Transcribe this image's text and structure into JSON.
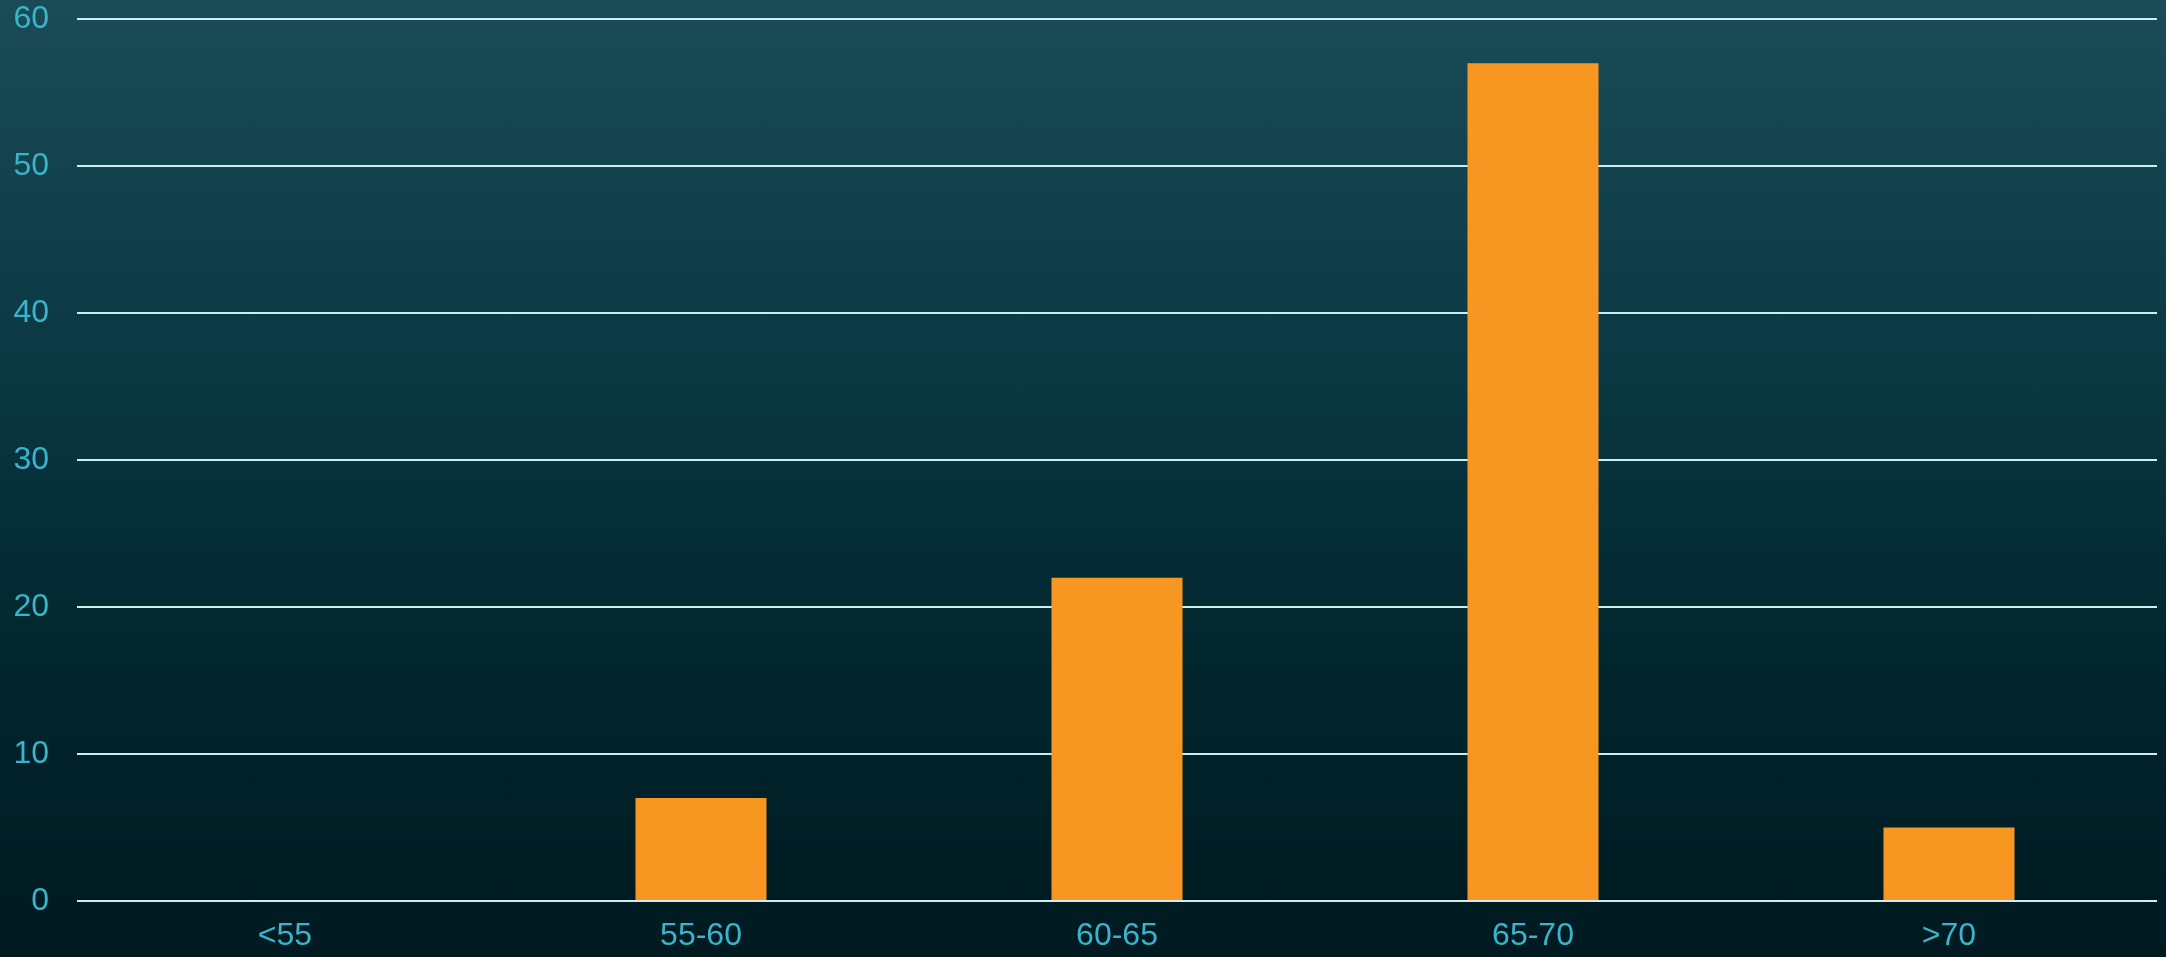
{
  "chart_data": {
    "type": "bar",
    "categories": [
      "<55",
      "55-60",
      "60-65",
      "65-70",
      ">70"
    ],
    "values": [
      0,
      7,
      22,
      57,
      5
    ],
    "color": "#f79722",
    "ylim": [
      0,
      60
    ],
    "yticks": [
      0,
      10,
      20,
      30,
      40,
      50,
      60
    ],
    "grid": "y"
  }
}
